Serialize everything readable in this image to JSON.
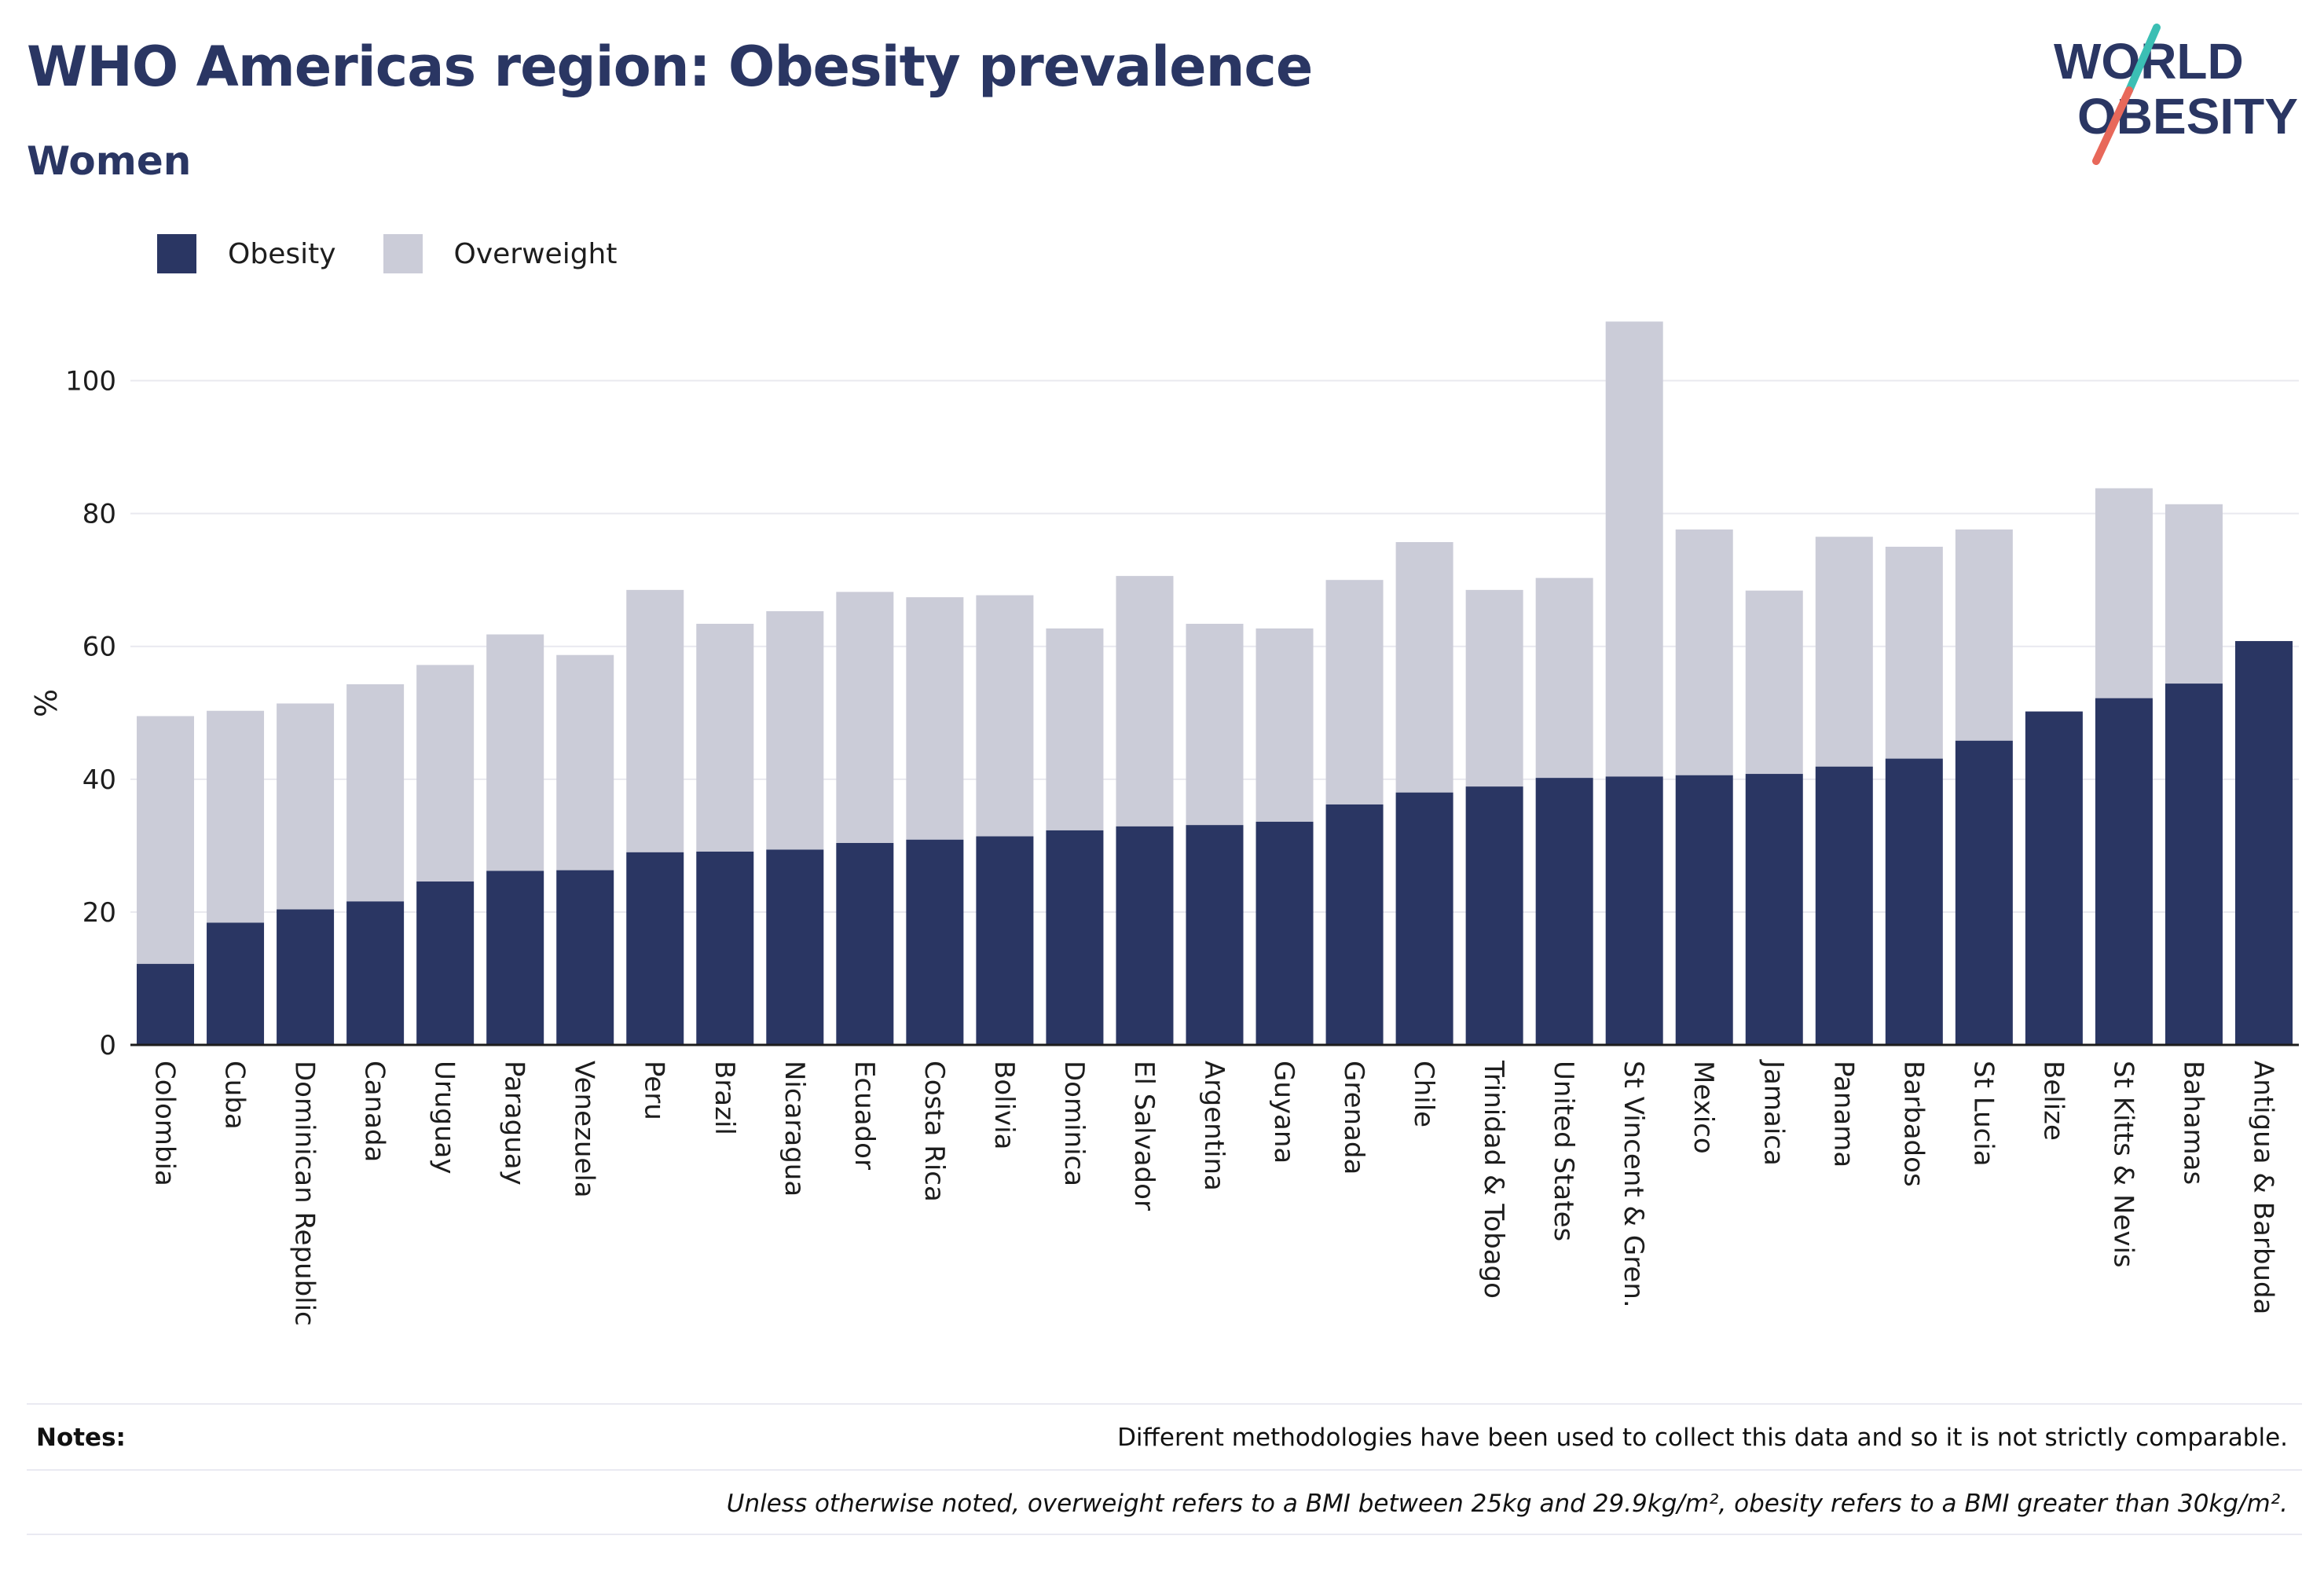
{
  "title": "WHO Americas region: Obesity prevalence",
  "subtitle": "Women",
  "logo": {
    "line1": "WORLD",
    "line2": "OBESITY",
    "accent_colors": [
      "#3bbfb4",
      "#e8685a"
    ]
  },
  "colors": {
    "obesity": "#2a3663",
    "overweight": "#cbccd8",
    "text": "#2a3663"
  },
  "notes": {
    "label": "Notes:",
    "text": "Different methodologies have been used to collect this data and so it is not strictly comparable.",
    "definition": "Unless otherwise noted, overweight refers to a BMI between 25kg and 29.9kg/m², obesity refers to a BMI greater than 30kg/m²."
  },
  "chart_data": {
    "type": "bar",
    "stacked": true,
    "ylabel": "%",
    "xlabel": "",
    "ylim": [
      0,
      110
    ],
    "yticks": [
      0,
      20,
      40,
      60,
      80,
      100
    ],
    "grid": true,
    "legend_position": "top-left",
    "categories": [
      "Colombia",
      "Cuba",
      "Dominican Republic",
      "Canada",
      "Uruguay",
      "Paraguay",
      "Venezuela",
      "Peru",
      "Brazil",
      "Nicaragua",
      "Ecuador",
      "Costa Rica",
      "Bolivia",
      "Dominica",
      "El Salvador",
      "Argentina",
      "Guyana",
      "Grenada",
      "Chile",
      "Trinidad & Tobago",
      "United States",
      "St Vincent & Gren.",
      "Mexico",
      "Jamaica",
      "Panama",
      "Barbados",
      "St Lucia",
      "Belize",
      "St Kitts & Nevis",
      "Bahamas",
      "Antigua & Barbuda"
    ],
    "series": [
      {
        "name": "Obesity",
        "values": [
          12.2,
          18.4,
          20.4,
          21.6,
          24.6,
          26.2,
          26.3,
          29.0,
          29.1,
          29.4,
          30.4,
          30.9,
          31.4,
          32.3,
          32.9,
          33.1,
          33.6,
          36.2,
          38.0,
          38.9,
          40.2,
          40.4,
          40.6,
          40.8,
          41.9,
          43.1,
          45.8,
          50.2,
          52.2,
          54.4,
          60.8
        ]
      },
      {
        "name": "Overweight",
        "values": [
          37.3,
          31.9,
          31.0,
          32.7,
          32.6,
          35.6,
          32.4,
          39.5,
          34.3,
          35.9,
          37.8,
          36.5,
          36.3,
          30.4,
          37.7,
          30.3,
          29.1,
          33.8,
          37.7,
          29.6,
          30.1,
          68.5,
          37.0,
          27.6,
          34.6,
          31.9,
          31.8,
          0,
          31.6,
          27.0,
          0
        ]
      }
    ]
  }
}
